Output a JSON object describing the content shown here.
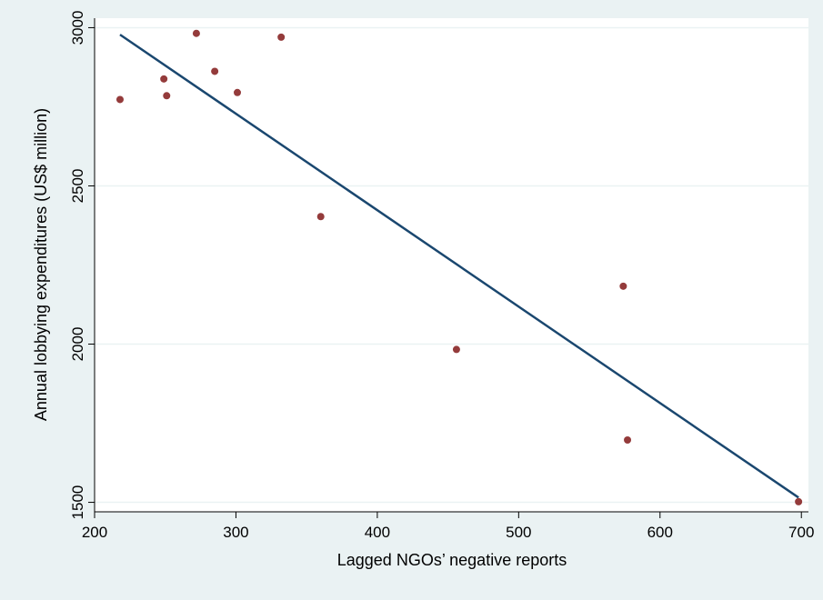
{
  "chart_data": {
    "type": "scatter",
    "title": "",
    "xlabel": "Lagged NGOs’ negative reports",
    "ylabel": "Annual lobbying expenditures (US$ million)",
    "xlim": [
      200,
      705
    ],
    "ylim": [
      1470,
      3030
    ],
    "xticks": [
      200,
      300,
      400,
      500,
      600,
      700
    ],
    "yticks": [
      1500,
      2000,
      2500,
      3000
    ],
    "grid": true,
    "legend": "none",
    "colors": {
      "background": "#eaf2f3",
      "plot_area": "#ffffff",
      "points": "#943b3b",
      "fit_line": "#1a476f",
      "grid": "#eaf2f3"
    },
    "series": [
      {
        "kind": "points",
        "x": [
          218,
          249,
          251,
          272,
          285,
          301,
          332,
          360,
          456,
          574,
          577,
          698
        ],
        "y": [
          2773,
          2838,
          2785,
          2982,
          2862,
          2795,
          2970,
          2403,
          1983,
          2183,
          1697,
          1502
        ]
      },
      {
        "kind": "fitted-line",
        "x": [
          218,
          698
        ],
        "y": [
          2978,
          1515
        ]
      }
    ]
  }
}
